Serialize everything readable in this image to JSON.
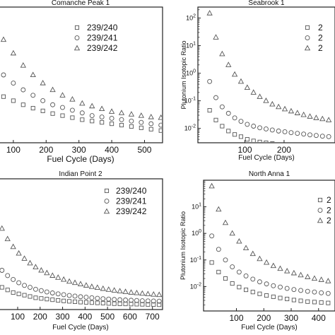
{
  "chart_data": [
    {
      "type": "scatter",
      "title": "Comanche Peak 1",
      "xlabel": "Fuel Cycle (Days)",
      "ylabel": "",
      "x_ticks": [
        "100",
        "200",
        "300",
        "400",
        "500"
      ],
      "xlim": [
        55,
        555
      ],
      "ylim_relative": [
        0,
        1
      ],
      "legend": [
        "239/240",
        "239/241",
        "239/242"
      ],
      "legend_position": "top-right",
      "x": [
        70,
        100,
        130,
        160,
        190,
        220,
        250,
        280,
        310,
        340,
        370,
        400,
        430,
        460,
        490,
        520,
        550
      ],
      "series": [
        {
          "name": "239/240",
          "marker": "square",
          "values": [
            0.34,
            0.31,
            0.28,
            0.255,
            0.235,
            0.215,
            0.2,
            0.185,
            0.17,
            0.16,
            0.15,
            0.14,
            0.13,
            0.12,
            0.11,
            0.1,
            0.09
          ]
        },
        {
          "name": "239/241",
          "marker": "circle",
          "values": [
            0.5,
            0.44,
            0.39,
            0.35,
            0.31,
            0.28,
            0.26,
            0.24,
            0.22,
            0.2,
            0.19,
            0.18,
            0.17,
            0.16,
            0.15,
            0.14,
            0.13
          ]
        },
        {
          "name": "239/242",
          "marker": "triangle",
          "values": [
            0.76,
            0.66,
            0.57,
            0.5,
            0.44,
            0.39,
            0.35,
            0.32,
            0.29,
            0.27,
            0.25,
            0.23,
            0.22,
            0.21,
            0.2,
            0.19,
            0.185
          ]
        }
      ]
    },
    {
      "type": "scatter",
      "title": "Seabrook 1",
      "xlabel": "Fuel Cycle (Days)",
      "ylabel": "Plutonium Isotopic Ratio",
      "y_scale": "log",
      "ylim": [
        0.003,
        250
      ],
      "y_ticks": [
        {
          "value": 0.01,
          "base": "10",
          "exp": "-2"
        },
        {
          "value": 0.1,
          "base": "10",
          "exp": "-1"
        },
        {
          "value": 1,
          "base": "10",
          "exp": "0"
        },
        {
          "value": 10,
          "base": "10",
          "exp": "1"
        },
        {
          "value": 100,
          "base": "10",
          "exp": "2"
        }
      ],
      "x_ticks": [
        "100",
        "200"
      ],
      "xlim": [
        -20,
        330
      ],
      "legend": [
        "2",
        "2",
        "2"
      ],
      "legend_position": "top-right",
      "x": [
        10,
        26,
        42,
        58,
        74,
        90,
        106,
        122,
        138,
        154,
        170,
        186,
        202,
        218,
        234,
        250,
        266,
        282,
        298,
        314
      ],
      "series": [
        {
          "name": "2",
          "marker": "square",
          "values": [
            0.045,
            0.02,
            0.012,
            0.008,
            0.006,
            0.005,
            0.004,
            0.0035,
            0.0032,
            0.003,
            0.0028,
            0.0026,
            0.0024,
            0.0023,
            0.0022,
            0.0021,
            0.002,
            0.0019,
            0.0018,
            0.0018
          ]
        },
        {
          "name": "2",
          "marker": "circle",
          "values": [
            0.5,
            0.13,
            0.06,
            0.035,
            0.024,
            0.018,
            0.014,
            0.012,
            0.0105,
            0.0095,
            0.0087,
            0.008,
            0.0075,
            0.007,
            0.0066,
            0.0062,
            0.0058,
            0.0055,
            0.0052,
            0.005
          ]
        },
        {
          "name": "2",
          "marker": "triangle",
          "values": [
            150,
            20,
            5,
            2,
            0.9,
            0.5,
            0.3,
            0.2,
            0.14,
            0.1,
            0.075,
            0.06,
            0.05,
            0.042,
            0.036,
            0.031,
            0.027,
            0.024,
            0.022,
            0.02
          ]
        }
      ]
    },
    {
      "type": "scatter",
      "title": "Indian Point 2",
      "xlabel": "Fuel Cycle (Days)",
      "ylabel": "",
      "x_ticks": [
        "100",
        "200",
        "300",
        "400",
        "500",
        "600",
        "700"
      ],
      "xlim": [
        15,
        745
      ],
      "ylim_relative": [
        0,
        1
      ],
      "legend": [
        "239/240",
        "239/241",
        "239/242"
      ],
      "legend_position": "top-right",
      "x": [
        5,
        30,
        55,
        80,
        105,
        130,
        155,
        180,
        205,
        230,
        255,
        280,
        305,
        330,
        355,
        380,
        405,
        430,
        455,
        480,
        505,
        530,
        555,
        580,
        605,
        630,
        655,
        680,
        705,
        730
      ],
      "series": [
        {
          "name": "239/240",
          "marker": "square",
          "values": [
            0.2,
            0.17,
            0.15,
            0.13,
            0.12,
            0.11,
            0.1,
            0.09,
            0.085,
            0.08,
            0.075,
            0.07,
            0.066,
            0.063,
            0.06,
            0.057,
            0.055,
            0.053,
            0.051,
            0.049,
            0.047,
            0.045,
            0.044,
            0.043,
            0.042,
            0.041,
            0.04,
            0.039,
            0.038,
            0.037
          ]
        },
        {
          "name": "239/241",
          "marker": "circle",
          "values": [
            0.36,
            0.3,
            0.26,
            0.23,
            0.205,
            0.185,
            0.17,
            0.155,
            0.145,
            0.135,
            0.127,
            0.12,
            0.114,
            0.108,
            0.103,
            0.098,
            0.094,
            0.09,
            0.086,
            0.083,
            0.08,
            0.077,
            0.075,
            0.073,
            0.071,
            0.069,
            0.067,
            0.066,
            0.065,
            0.064
          ]
        },
        {
          "name": "239/242",
          "marker": "triangle",
          "values": [
            0.72,
            0.62,
            0.54,
            0.48,
            0.43,
            0.39,
            0.355,
            0.325,
            0.3,
            0.28,
            0.26,
            0.245,
            0.23,
            0.215,
            0.205,
            0.195,
            0.185,
            0.175,
            0.168,
            0.16,
            0.153,
            0.147,
            0.141,
            0.136,
            0.131,
            0.127,
            0.123,
            0.119,
            0.116,
            0.113
          ]
        }
      ]
    },
    {
      "type": "scatter",
      "title": "North Anna 1",
      "xlabel": "Fuel Cycle (Days)",
      "ylabel": "Plutonium Isotopic Ratio",
      "y_scale": "log",
      "ylim": [
        0.0012,
        100
      ],
      "y_ticks": [
        {
          "value": 0.01,
          "base": "10",
          "exp": "-2"
        },
        {
          "value": 0.1,
          "base": "10",
          "exp": "-1"
        },
        {
          "value": 1,
          "base": "10",
          "exp": "0"
        },
        {
          "value": 10,
          "base": "10",
          "exp": "1"
        }
      ],
      "x_ticks": [
        "100",
        "200",
        "300",
        "400"
      ],
      "xlim": [
        -20,
        460
      ],
      "legend": [
        "2",
        "2",
        "2"
      ],
      "legend_position": "top-right",
      "x": [
        10,
        35,
        60,
        85,
        110,
        135,
        160,
        185,
        210,
        235,
        260,
        285,
        310,
        335,
        360,
        385,
        410,
        435
      ],
      "series": [
        {
          "name": "2",
          "marker": "square",
          "values": [
            0.08,
            0.035,
            0.02,
            0.013,
            0.0095,
            0.0075,
            0.0062,
            0.0053,
            0.0046,
            0.0041,
            0.0037,
            0.0034,
            0.0031,
            0.0029,
            0.0027,
            0.0026,
            0.0025,
            0.0024
          ]
        },
        {
          "name": "2",
          "marker": "circle",
          "values": [
            0.8,
            0.25,
            0.1,
            0.055,
            0.035,
            0.025,
            0.019,
            0.015,
            0.0125,
            0.0107,
            0.0095,
            0.0085,
            0.0077,
            0.0071,
            0.0066,
            0.0062,
            0.0058,
            0.0055
          ]
        },
        {
          "name": "2",
          "marker": "triangle",
          "values": [
            60,
            8,
            2.5,
            1,
            0.5,
            0.28,
            0.17,
            0.11,
            0.08,
            0.06,
            0.047,
            0.038,
            0.032,
            0.027,
            0.023,
            0.02,
            0.018,
            0.016
          ]
        }
      ]
    }
  ]
}
